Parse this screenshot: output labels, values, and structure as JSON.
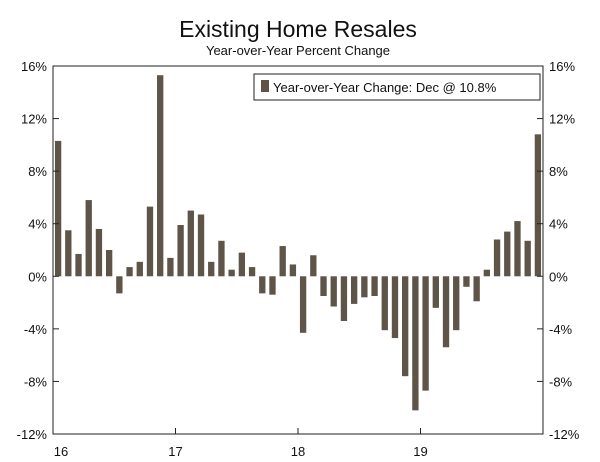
{
  "chart_data": {
    "type": "bar",
    "title": "Existing Home Resales",
    "subtitle": "Year-over-Year Percent Change",
    "xlabel": "",
    "ylabel": "",
    "ylim": [
      -12,
      16
    ],
    "y_ticks": [
      16,
      12,
      8,
      4,
      0,
      -4,
      -8,
      -12
    ],
    "y_tick_labels": [
      "16%",
      "12%",
      "8%",
      "4%",
      "0%",
      "-4%",
      "-8%",
      "-12%"
    ],
    "x_tick_labels": [
      "16",
      "17",
      "18",
      "19"
    ],
    "x_tick_month_index": [
      0,
      12,
      24,
      36
    ],
    "legend": {
      "label": "Year-over-Year Change: Dec @ 10.8%",
      "placement": "top-right"
    },
    "bar_color": "#5f5448",
    "series": [
      {
        "name": "Year-over-Year Change",
        "values": [
          10.3,
          3.5,
          1.7,
          5.8,
          3.6,
          2.0,
          -1.3,
          0.7,
          1.1,
          5.3,
          15.3,
          1.4,
          3.9,
          5.0,
          4.7,
          1.1,
          2.7,
          0.5,
          1.8,
          0.7,
          -1.3,
          -1.4,
          2.3,
          0.9,
          -4.3,
          1.6,
          -1.5,
          -2.3,
          -3.4,
          -2.1,
          -1.6,
          -1.5,
          -4.1,
          -4.7,
          -7.6,
          -10.2,
          -8.7,
          -2.4,
          -5.4,
          -4.1,
          -0.8,
          -1.9,
          0.5,
          2.8,
          3.4,
          4.2,
          2.7,
          10.8
        ]
      }
    ]
  }
}
